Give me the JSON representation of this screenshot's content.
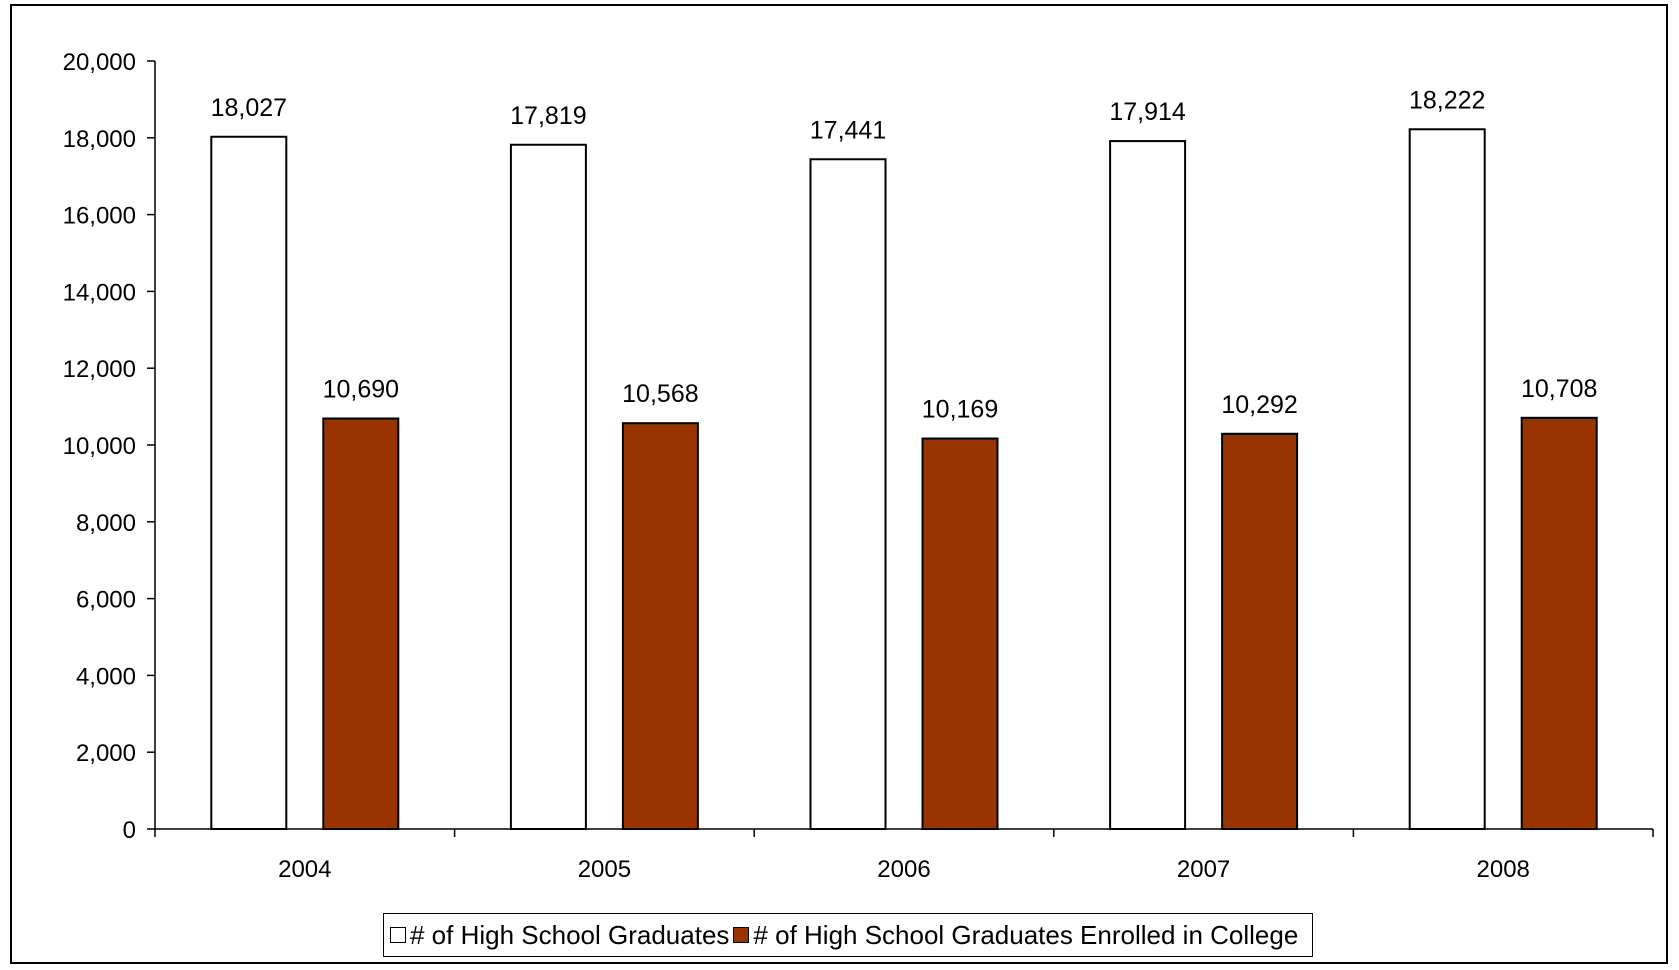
{
  "colors": {
    "series_graduates": "#ffffff",
    "series_enrolled": "#993300",
    "stroke": "#000000"
  },
  "chart_data": {
    "type": "bar",
    "categories": [
      "2004",
      "2005",
      "2006",
      "2007",
      "2008"
    ],
    "series": [
      {
        "name": "# of High School Graduates",
        "values": [
          18027,
          17819,
          17441,
          17914,
          18222
        ],
        "labels": [
          "18,027",
          "17,819",
          "17,441",
          "17,914",
          "18,222"
        ],
        "color": "#ffffff"
      },
      {
        "name": "# of High School Graduates Enrolled in College",
        "values": [
          10690,
          10568,
          10169,
          10292,
          10708
        ],
        "labels": [
          "10,690",
          "10,568",
          "10,169",
          "10,292",
          "10,708"
        ],
        "color": "#993300"
      }
    ],
    "title": "",
    "xlabel": "",
    "ylabel": "",
    "ylim": [
      0,
      20000
    ],
    "yticks": [
      "0",
      "2,000",
      "4,000",
      "6,000",
      "8,000",
      "10,000",
      "12,000",
      "14,000",
      "16,000",
      "18,000",
      "20,000"
    ],
    "grid": false,
    "legend_position": "bottom"
  }
}
